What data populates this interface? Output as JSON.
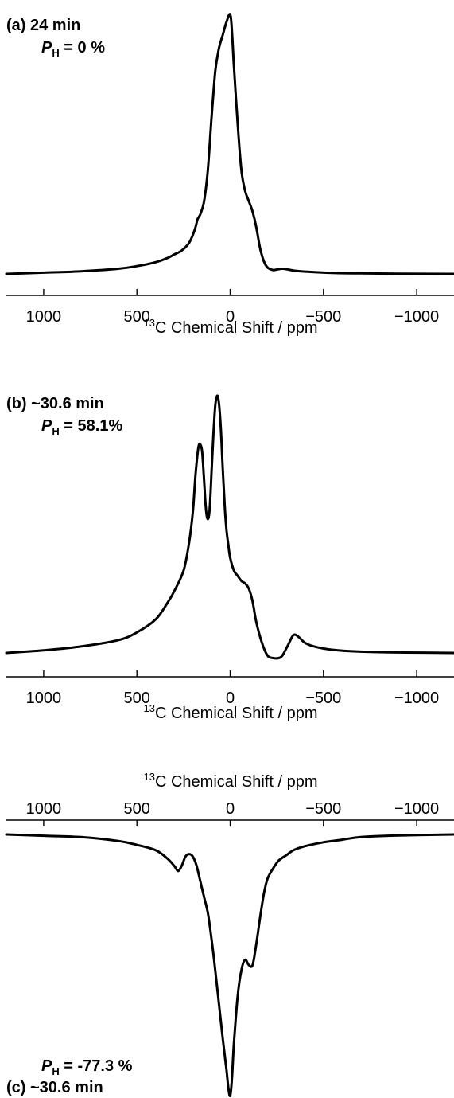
{
  "chart_data": [
    {
      "type": "line",
      "panel_label": "(a) 24 min",
      "polarization_symbol": "P",
      "polarization_subscript": "H",
      "polarization_value": " = 0 %",
      "xlabel_sup": "13",
      "xlabel_text": "C Chemical Shift / ppm",
      "x_axis_position": "bottom",
      "xlim": [
        1200,
        -1200
      ],
      "xticks": [
        1000,
        500,
        0,
        -500,
        -1000
      ],
      "xtick_labels": [
        "1000",
        "500",
        "0",
        "−500",
        "−1000"
      ],
      "grid": false,
      "sign": 1,
      "series": [
        {
          "x": [
            1200,
            1000,
            800,
            600,
            500,
            400,
            340,
            300,
            260,
            220,
            190,
            175,
            160,
            140,
            120,
            100,
            80,
            60,
            40,
            20,
            0,
            -10,
            -20,
            -40,
            -60,
            -80,
            -100,
            -120,
            -140,
            -160,
            -180,
            -200,
            -230,
            -250,
            -280,
            -310,
            -340,
            -380,
            -450,
            -550,
            -700,
            -900,
            -1200
          ],
          "y": [
            0.0,
            0.005,
            0.01,
            0.02,
            0.03,
            0.045,
            0.06,
            0.075,
            0.09,
            0.12,
            0.17,
            0.21,
            0.23,
            0.28,
            0.4,
            0.6,
            0.78,
            0.87,
            0.92,
            0.97,
            1.0,
            0.93,
            0.8,
            0.58,
            0.4,
            0.32,
            0.28,
            0.24,
            0.18,
            0.1,
            0.05,
            0.025,
            0.015,
            0.017,
            0.02,
            0.017,
            0.013,
            0.01,
            0.007,
            0.004,
            0.002,
            0.001,
            0.0
          ]
        }
      ]
    },
    {
      "type": "line",
      "panel_label": "(b) ~30.6 min",
      "polarization_symbol": "P",
      "polarization_subscript": "H",
      "polarization_value": " = 58.1%",
      "xlabel_sup": "13",
      "xlabel_text": "C Chemical Shift / ppm",
      "x_axis_position": "bottom",
      "xlim": [
        1200,
        -1200
      ],
      "xticks": [
        1000,
        500,
        0,
        -500,
        -1000
      ],
      "xtick_labels": [
        "1000",
        "500",
        "0",
        "−500",
        "−1000"
      ],
      "grid": false,
      "sign": 1,
      "series": [
        {
          "x": [
            1200,
            1000,
            800,
            600,
            500,
            400,
            340,
            300,
            250,
            220,
            200,
            185,
            170,
            160,
            150,
            140,
            130,
            120,
            110,
            100,
            90,
            80,
            70,
            60,
            50,
            40,
            30,
            20,
            10,
            0,
            -20,
            -40,
            -60,
            -80,
            -100,
            -120,
            -140,
            -170,
            -200,
            -230,
            -260,
            -280,
            -310,
            -340,
            -370,
            -400,
            -450,
            -550,
            -700,
            -900,
            -1200
          ],
          "y": [
            0.0,
            0.01,
            0.025,
            0.05,
            0.08,
            0.13,
            0.19,
            0.24,
            0.32,
            0.43,
            0.55,
            0.7,
            0.8,
            0.81,
            0.78,
            0.67,
            0.56,
            0.52,
            0.56,
            0.7,
            0.85,
            0.96,
            1.0,
            0.97,
            0.87,
            0.72,
            0.58,
            0.48,
            0.42,
            0.37,
            0.32,
            0.3,
            0.28,
            0.27,
            0.25,
            0.2,
            0.12,
            0.04,
            -0.01,
            -0.02,
            -0.02,
            -0.01,
            0.03,
            0.07,
            0.06,
            0.04,
            0.025,
            0.012,
            0.005,
            0.002,
            0.0
          ]
        }
      ]
    },
    {
      "type": "line",
      "panel_label": "(c) ~30.6 min",
      "polarization_symbol": "P",
      "polarization_subscript": "H",
      "polarization_value": " = -77.3 %",
      "xlabel_sup": "13",
      "xlabel_text": "C Chemical Shift / ppm",
      "x_axis_position": "top",
      "xlim": [
        1200,
        -1200
      ],
      "xticks": [
        1000,
        500,
        0,
        -500,
        -1000
      ],
      "xtick_labels": [
        "1000",
        "500",
        "0",
        "−500",
        "−1000"
      ],
      "grid": false,
      "sign": -1,
      "series": [
        {
          "x": [
            1200,
            1000,
            800,
            600,
            500,
            400,
            340,
            300,
            280,
            260,
            240,
            220,
            200,
            180,
            160,
            140,
            120,
            100,
            80,
            60,
            40,
            20,
            10,
            0,
            -10,
            -20,
            -40,
            -60,
            -80,
            -100,
            -120,
            -140,
            -160,
            -180,
            -200,
            -230,
            -260,
            -300,
            -340,
            -400,
            -500,
            -600,
            -700,
            -900,
            -1200
          ],
          "y": [
            0.0,
            0.005,
            0.01,
            0.025,
            0.04,
            0.06,
            0.09,
            0.12,
            0.14,
            0.12,
            0.085,
            0.075,
            0.085,
            0.12,
            0.18,
            0.24,
            0.3,
            0.4,
            0.52,
            0.65,
            0.78,
            0.9,
            0.97,
            1.0,
            0.93,
            0.8,
            0.62,
            0.52,
            0.48,
            0.5,
            0.5,
            0.42,
            0.32,
            0.23,
            0.17,
            0.13,
            0.1,
            0.08,
            0.06,
            0.045,
            0.03,
            0.02,
            0.01,
            0.004,
            0.0
          ]
        }
      ]
    }
  ]
}
